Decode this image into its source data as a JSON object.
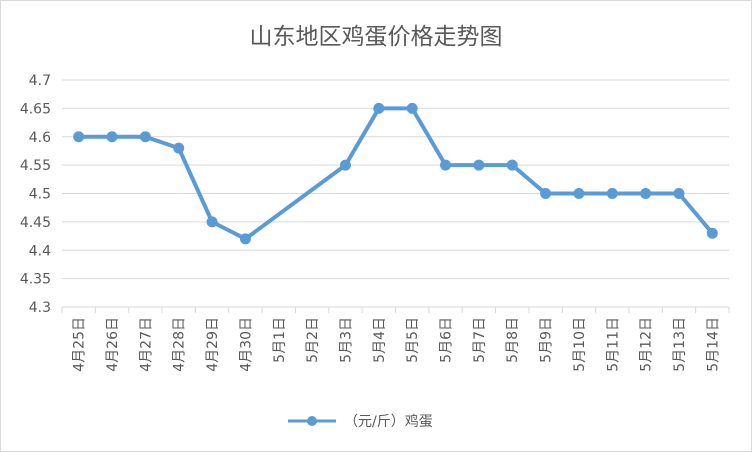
{
  "chart_data": {
    "type": "line",
    "title": "山东地区鸡蛋价格走势图",
    "categories": [
      "4月25日",
      "4月26日",
      "4月27日",
      "4月28日",
      "4月29日",
      "4月30日",
      "5月1日",
      "5月2日",
      "5月3日",
      "5月4日",
      "5月5日",
      "5月6日",
      "5月7日",
      "5月8日",
      "5月9日",
      "5月10日",
      "5月11日",
      "5月12日",
      "5月13日",
      "5月14日"
    ],
    "series": [
      {
        "name": "（元/斤）鸡蛋",
        "values": [
          4.6,
          4.6,
          4.6,
          4.58,
          4.45,
          4.42,
          null,
          null,
          4.55,
          4.65,
          4.65,
          4.55,
          4.55,
          4.55,
          4.5,
          4.5,
          4.5,
          4.5,
          4.5,
          4.43
        ],
        "color": "#5b9bd5"
      }
    ],
    "ylim": [
      4.3,
      4.7
    ],
    "yticks": [
      "4.7",
      "4.65",
      "4.6",
      "4.55",
      "4.5",
      "4.45",
      "4.4",
      "4.35",
      "4.3"
    ],
    "grid": true,
    "legend_position": "bottom",
    "gap_handling": "connect"
  },
  "colors": {
    "grid": "#d9d9d9",
    "text": "#595959",
    "series": "#5b9bd5"
  }
}
